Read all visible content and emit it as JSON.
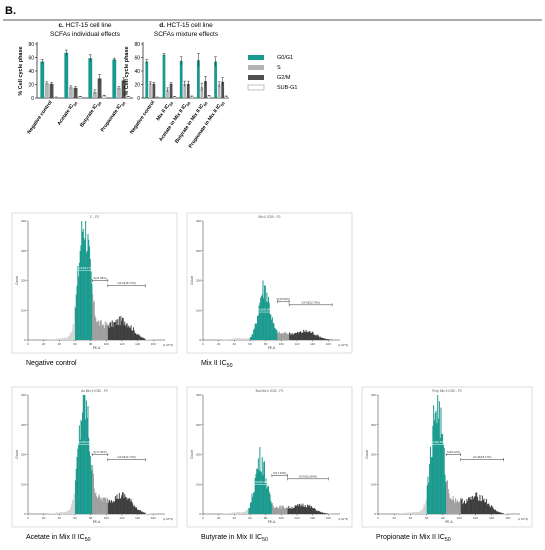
{
  "figure": {
    "panel_letter": "B.",
    "colors": {
      "g0g1": "#1a9a8e",
      "s": "#b4b4b4",
      "g2m": "#505050",
      "subg1": "#ffffff",
      "rule": "#222222"
    }
  },
  "chart_data": [
    {
      "type": "bar",
      "panel": "c.",
      "title": "HCT-15 cell line",
      "subtitle": "SCFAs individual effects",
      "ylabel": "% Cell cycle phase",
      "ylim": [
        0,
        80
      ],
      "yticks": [
        0,
        20,
        40,
        60,
        80
      ],
      "categories": [
        "Negative control",
        "Acetate IC50",
        "Butyrate IC50",
        "Propionate IC50"
      ],
      "series": [
        {
          "name": "G0/G1",
          "values": [
            54,
            67,
            59,
            57
          ],
          "errors": [
            3,
            4,
            5,
            2
          ]
        },
        {
          "name": "S",
          "values": [
            22,
            16,
            9,
            15
          ],
          "errors": [
            2,
            2,
            3,
            2
          ]
        },
        {
          "name": "G2/M",
          "values": [
            21,
            15,
            29,
            26
          ],
          "errors": [
            2,
            2,
            6,
            4
          ]
        },
        {
          "name": "SUB-G1",
          "values": [
            1,
            2,
            3,
            2
          ],
          "errors": [
            0.5,
            0.5,
            1,
            0.5
          ]
        }
      ]
    },
    {
      "type": "bar",
      "panel": "d.",
      "title": "HCT-15 cell line",
      "subtitle": "SCFAs mixture effects",
      "ylabel": "% Cell cycle phase",
      "ylim": [
        0,
        80
      ],
      "yticks": [
        0,
        20,
        40,
        60,
        80
      ],
      "categories": [
        "Negative control",
        "Mix II IC50",
        "Acetate in Mix II IC50",
        "Butyrate in Mix II IC50",
        "Propionate in Mix II IC50"
      ],
      "series": [
        {
          "name": "G0/G1",
          "values": [
            54,
            64,
            55,
            56,
            54
          ],
          "errors": [
            3,
            2,
            6,
            10,
            7
          ]
        },
        {
          "name": "S",
          "values": [
            22,
            12,
            21,
            16,
            20
          ],
          "errors": [
            2,
            3,
            4,
            6,
            4
          ]
        },
        {
          "name": "G2/M",
          "values": [
            21,
            21,
            21,
            25,
            24
          ],
          "errors": [
            2,
            2,
            4,
            7,
            6
          ]
        },
        {
          "name": "SUB-G1",
          "values": [
            1,
            2,
            2,
            3,
            2
          ],
          "errors": [
            0.5,
            0.5,
            1,
            1,
            1
          ]
        }
      ]
    },
    {
      "type": "area",
      "title": "Negative control",
      "header": "C - P2",
      "xlabel": "PE-A",
      "x_unit": "(x 10^3)",
      "ylabel": "Count",
      "xlim": [
        0,
        175
      ],
      "ylim": [
        0,
        400
      ],
      "gates": [
        {
          "label": "G0-G1(53.17%)",
          "from": 60,
          "to": 82
        },
        {
          "label": "S(21.58%)",
          "from": 82,
          "to": 102
        },
        {
          "label": "G2-M(18.74%)",
          "from": 102,
          "to": 150
        }
      ],
      "peak_y": 390
    },
    {
      "type": "area",
      "title": "Mix II IC50",
      "header": "Mix II IC50 - P2",
      "xlabel": "PE-A",
      "x_unit": "(x 10^3)",
      "ylabel": "Count",
      "xlim": [
        0,
        175
      ],
      "ylim": [
        0,
        400
      ],
      "gates": [
        {
          "label": "G0-G1(65.84%)",
          "from": 60,
          "to": 95
        },
        {
          "label": "S(10.93%)",
          "from": 95,
          "to": 110
        },
        {
          "label": "G2-M(22.75%)",
          "from": 110,
          "to": 165
        }
      ],
      "peak_y": 175
    },
    {
      "type": "area",
      "title": "Acetate in Mix II IC50",
      "header": "Ac Mix II IC50 - P2",
      "xlabel": "PE-A",
      "x_unit": "(x 10^3)",
      "ylabel": "Count",
      "xlim": [
        0,
        175
      ],
      "ylim": [
        0,
        400
      ],
      "gates": [
        {
          "label": "G0-G1(60.92%)",
          "from": 60,
          "to": 82
        },
        {
          "label": "S(17.30%)",
          "from": 82,
          "to": 102
        },
        {
          "label": "G2-M(14.72%)",
          "from": 102,
          "to": 150
        }
      ],
      "peak_y": 365
    },
    {
      "type": "area",
      "title": "Butyrate in Mix II IC50",
      "header": "But Mix II IC50 - P2",
      "xlabel": "PE-A",
      "x_unit": "(x 10^3)",
      "ylabel": "Count",
      "xlim": [
        0,
        175
      ],
      "ylim": [
        0,
        400
      ],
      "gates": [
        {
          "label": "G0-G1(53.29%)",
          "from": 58,
          "to": 88
        },
        {
          "label": "S(17.33%)",
          "from": 88,
          "to": 108
        },
        {
          "label": "G2-M(21.85%)",
          "from": 108,
          "to": 160
        }
      ],
      "peak_y": 185
    },
    {
      "type": "area",
      "title": "Propionate in Mix II IC50",
      "header": "Prop Mix II IC50 - P2",
      "xlabel": "PE-A",
      "x_unit": "(x 10^3)",
      "ylabel": "Count",
      "xlim": [
        0,
        175
      ],
      "ylim": [
        0,
        400
      ],
      "gates": [
        {
          "label": "G0-G1(60.25%)",
          "from": 60,
          "to": 84
        },
        {
          "label": "S(15.12%)",
          "from": 84,
          "to": 102
        },
        {
          "label": "G2-M(18.17%)",
          "from": 102,
          "to": 155
        }
      ],
      "peak_y": 355
    }
  ]
}
